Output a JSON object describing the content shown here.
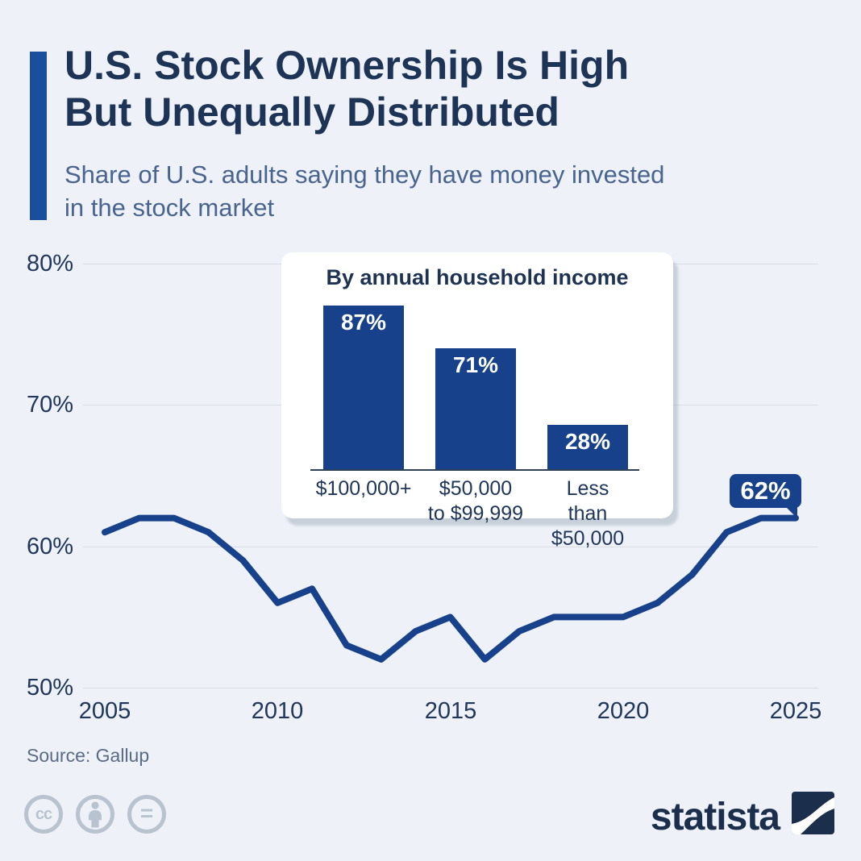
{
  "header": {
    "title_line1": "U.S. Stock Ownership Is High",
    "title_line2": "But Unequally Distributed",
    "subtitle_line1": "Share of U.S. adults saying they have money invested",
    "subtitle_line2": "in the stock market"
  },
  "chart_data": [
    {
      "type": "line",
      "series_name": "Share of U.S. adults with money invested in the stock market",
      "x": [
        2005,
        2006,
        2007,
        2008,
        2009,
        2010,
        2011,
        2012,
        2013,
        2014,
        2015,
        2016,
        2017,
        2018,
        2019,
        2020,
        2021,
        2022,
        2023,
        2024,
        2025
      ],
      "values": [
        61,
        62,
        62,
        61,
        59,
        56,
        57,
        53,
        52,
        54,
        55,
        52,
        54,
        55,
        55,
        55,
        56,
        58,
        61,
        62,
        62
      ],
      "ylim": [
        50,
        80
      ],
      "y_ticks": [
        80,
        70,
        60,
        50
      ],
      "x_ticks": [
        2005,
        2010,
        2015,
        2020,
        2025
      ],
      "grid": true,
      "legend": "none",
      "line_color": "#17418a",
      "end_annotation": "62%"
    },
    {
      "type": "bar",
      "title": "By annual household income",
      "categories": [
        "$100,000+",
        "$50,000\nto $99,999",
        "Less than\n$50,000"
      ],
      "values": [
        87,
        71,
        28
      ],
      "value_labels": [
        "87%",
        "71%",
        "28%"
      ],
      "bar_color": "#17418a"
    }
  ],
  "footer": {
    "source": "Source: Gallup",
    "cc_text": "cc",
    "equals_text": "=",
    "brand": "statista"
  },
  "colors": {
    "background": "#eef2f8",
    "accent_blue": "#1a4f9c",
    "data_blue": "#17418a",
    "navy_text": "#1d3456",
    "subtitle_text": "#49648f",
    "gridline": "#d8dde5"
  }
}
